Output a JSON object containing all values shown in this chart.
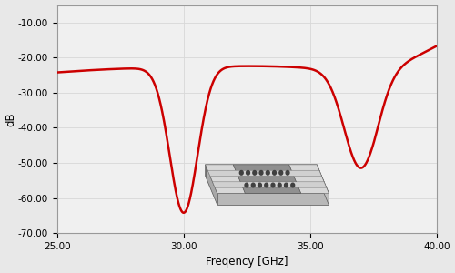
{
  "xmin": 25.0,
  "xmax": 40.0,
  "ymin": -70.0,
  "ymax": -5.0,
  "xlabel": "Freqency [GHz]",
  "ylabel": "dB",
  "line_color": "#cc0000",
  "line_width": 1.8,
  "background_color": "#f0f0f0",
  "grid_color": "#d8d8d8",
  "xticks": [
    25.0,
    30.0,
    35.0,
    40.0
  ],
  "yticks": [
    -70.0,
    -60.0,
    -50.0,
    -40.0,
    -30.0,
    -20.0,
    -10.0
  ],
  "xtick_labels": [
    "25.00",
    "30.00",
    "35.00",
    "40.00"
  ],
  "ytick_labels": [
    "-70.00",
    "-60.00",
    "-50.00",
    "-40.00",
    "-30.00",
    "-20.00",
    "-10.00"
  ]
}
